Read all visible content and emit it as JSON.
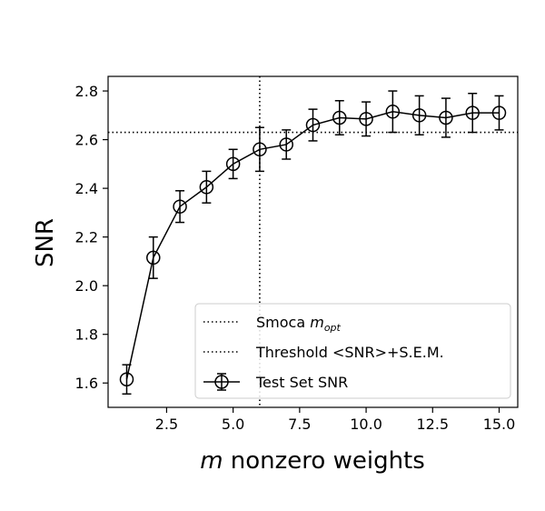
{
  "chart_data": {
    "type": "line",
    "xlabel": {
      "italic": "m",
      "rest": " nonzero weights"
    },
    "ylabel": "SNR",
    "xlim": [
      0.3,
      15.7
    ],
    "ylim": [
      1.5,
      2.86
    ],
    "xticks": [
      2.5,
      5.0,
      7.5,
      10.0,
      12.5,
      15.0
    ],
    "xtick_labels": [
      "2.5",
      "5.0",
      "7.5",
      "10.0",
      "12.5",
      "15.0"
    ],
    "yticks": [
      1.6,
      1.8,
      2.0,
      2.2,
      2.4,
      2.6,
      2.8
    ],
    "ytick_labels": [
      "1.6",
      "1.8",
      "2.0",
      "2.2",
      "2.4",
      "2.6",
      "2.8"
    ],
    "series": [
      {
        "name": "Test Set SNR",
        "marker": "open-circle",
        "color": "#000000",
        "x": [
          1,
          2,
          3,
          4,
          5,
          6,
          7,
          8,
          9,
          10,
          11,
          12,
          13,
          14,
          15
        ],
        "y": [
          1.615,
          2.115,
          2.325,
          2.405,
          2.5,
          2.56,
          2.58,
          2.66,
          2.69,
          2.685,
          2.715,
          2.7,
          2.69,
          2.71,
          2.71
        ],
        "err": [
          0.06,
          0.085,
          0.065,
          0.065,
          0.06,
          0.09,
          0.06,
          0.065,
          0.07,
          0.07,
          0.085,
          0.08,
          0.08,
          0.08,
          0.07
        ]
      }
    ],
    "reference_lines": [
      {
        "name": "Smoca m_opt",
        "orientation": "vertical",
        "value": 6.0,
        "style": "dotted"
      },
      {
        "name": "Threshold <SNR>+S.E.M.",
        "orientation": "horizontal",
        "value": 2.63,
        "style": "dotted"
      }
    ],
    "legend": {
      "placement": "lower-right",
      "entries": [
        {
          "text": "Smoca ",
          "math": "m",
          "sub": "opt",
          "style": "dotted"
        },
        {
          "text": "Threshold <SNR>+S.E.M.",
          "style": "dotted"
        },
        {
          "text": "Test Set SNR",
          "style": "line-marker"
        }
      ]
    },
    "grid": false
  }
}
